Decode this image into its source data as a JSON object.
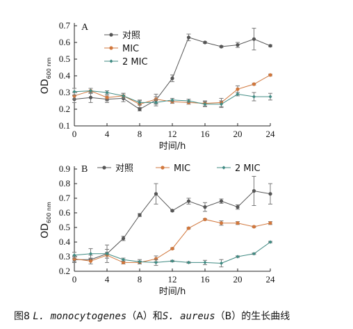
{
  "chart_data": [
    {
      "type": "line",
      "panel_label": "A",
      "x": [
        0,
        2,
        4,
        6,
        8,
        10,
        12,
        14,
        16,
        18,
        20,
        22,
        24
      ],
      "xticks": [
        0,
        4,
        8,
        12,
        16,
        20,
        24
      ],
      "xlim": [
        0,
        24
      ],
      "yticks": [
        0.1,
        0.2,
        0.3,
        0.4,
        0.5,
        0.6,
        0.7
      ],
      "ylim": [
        0.1,
        0.7
      ],
      "xlabel": "时间/h",
      "ylabel_main": "OD",
      "ylabel_sub": "600 nm",
      "legend_position": "top-center",
      "series": [
        {
          "name": "对照",
          "color": "#555555",
          "marker": "circle",
          "values": [
            0.26,
            0.27,
            0.26,
            0.265,
            0.2,
            0.255,
            0.385,
            0.63,
            0.6,
            0.575,
            0.585,
            0.62,
            0.58
          ],
          "errors": [
            0.02,
            0.03,
            0.02,
            0.02,
            0.01,
            0.02,
            0.02,
            0.02,
            0.005,
            0.005,
            0.015,
            0.065,
            0.005
          ]
        },
        {
          "name": "MIC",
          "color": "#d1773c",
          "marker": "circle",
          "values": [
            0.28,
            0.31,
            0.27,
            0.28,
            0.23,
            0.26,
            0.245,
            0.24,
            0.235,
            0.24,
            0.32,
            0.35,
            0.405
          ],
          "errors": [
            0.02,
            0.015,
            0.02,
            0.015,
            0.02,
            0.03,
            0.01,
            0.01,
            0.015,
            0.025,
            0.02,
            0.005,
            0.005
          ]
        },
        {
          "name": "2 MIC",
          "color": "#3f8a82",
          "marker": "diamond",
          "values": [
            0.305,
            0.31,
            0.3,
            0.28,
            0.24,
            0.24,
            0.255,
            0.25,
            0.23,
            0.23,
            0.29,
            0.275,
            0.275
          ],
          "errors": [
            0.02,
            0.015,
            0.01,
            0.015,
            0.015,
            0.02,
            0.01,
            0.01,
            0.015,
            0.02,
            0.01,
            0.025,
            0.02
          ]
        }
      ]
    },
    {
      "type": "line",
      "panel_label": "B",
      "x": [
        0,
        2,
        4,
        6,
        8,
        10,
        12,
        14,
        16,
        18,
        20,
        22,
        24
      ],
      "xticks": [
        0,
        4,
        8,
        12,
        16,
        20,
        24
      ],
      "xlim": [
        0,
        24
      ],
      "yticks": [
        0.2,
        0.3,
        0.4,
        0.5,
        0.6,
        0.7,
        0.8,
        0.9
      ],
      "ylim": [
        0.2,
        0.9
      ],
      "xlabel": "时间/h",
      "ylabel_main": "OD",
      "ylabel_sub": "600 nm",
      "legend_position": "top",
      "series": [
        {
          "name": "对照",
          "color": "#555555",
          "marker": "circle",
          "values": [
            0.28,
            0.28,
            0.32,
            0.425,
            0.585,
            0.73,
            0.615,
            0.68,
            0.64,
            0.68,
            0.64,
            0.75,
            0.73
          ],
          "errors": [
            0.02,
            0.03,
            0.06,
            0.015,
            0.01,
            0.07,
            0.005,
            0.02,
            0.03,
            0.015,
            0.015,
            0.1,
            0.07
          ]
        },
        {
          "name": "MIC",
          "color": "#d1773c",
          "marker": "circle",
          "values": [
            0.285,
            0.27,
            0.31,
            0.26,
            0.26,
            0.285,
            0.355,
            0.495,
            0.555,
            0.53,
            0.53,
            0.505,
            0.53
          ],
          "errors": [
            0.02,
            0.02,
            0.02,
            0.01,
            0.01,
            0.02,
            0.005,
            0.005,
            0.005,
            0.015,
            0.01,
            0.005,
            0.01
          ]
        },
        {
          "name": "2 MIC",
          "color": "#3f8a82",
          "marker": "diamond",
          "values": [
            0.31,
            0.32,
            0.32,
            0.28,
            0.265,
            0.26,
            0.27,
            0.26,
            0.26,
            0.255,
            0.3,
            0.32,
            0.4
          ],
          "errors": [
            0.02,
            0.035,
            0.03,
            0.01,
            0.015,
            0.02,
            0.005,
            0.005,
            0.015,
            0.025,
            0.005,
            0.005,
            0.005
          ]
        }
      ]
    }
  ],
  "caption": {
    "prefix": "图8 ",
    "species1": "L. monocytogenes",
    "mid1": "（A）和",
    "species2": "S. aureus",
    "mid2": "（B）的生长曲线"
  }
}
